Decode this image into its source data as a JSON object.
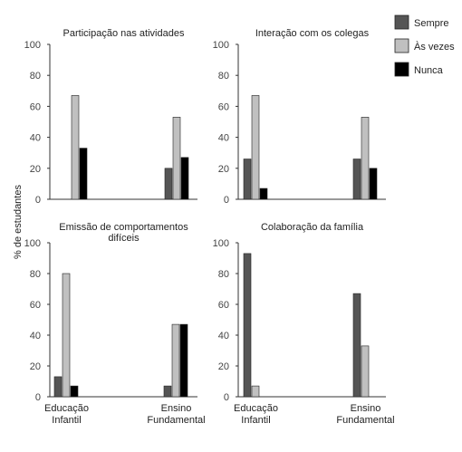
{
  "y_axis_label": "% de estudantes",
  "legend": [
    {
      "name": "Sempre",
      "color": "#555555"
    },
    {
      "name": "Às vezes",
      "color": "#c0c0c0"
    },
    {
      "name": "Nunca",
      "color": "#000000"
    }
  ],
  "chart_data": [
    {
      "type": "bar",
      "title": "Participação nas atividades",
      "categories": [
        "Educação Infantil",
        "Ensino Fundamental"
      ],
      "ylim": [
        0,
        100
      ],
      "yticks": [
        0,
        20,
        40,
        60,
        80,
        100
      ],
      "series": [
        {
          "name": "Sempre",
          "values": [
            0,
            20
          ]
        },
        {
          "name": "Às vezes",
          "values": [
            67,
            53
          ]
        },
        {
          "name": "Nunca",
          "values": [
            33,
            27
          ]
        }
      ]
    },
    {
      "type": "bar",
      "title": "Interação com os colegas",
      "categories": [
        "Educação Infantil",
        "Ensino Fundamental"
      ],
      "ylim": [
        0,
        100
      ],
      "yticks": [
        0,
        20,
        40,
        60,
        80,
        100
      ],
      "series": [
        {
          "name": "Sempre",
          "values": [
            26,
            26
          ]
        },
        {
          "name": "Às vezes",
          "values": [
            67,
            53
          ]
        },
        {
          "name": "Nunca",
          "values": [
            7,
            20
          ]
        }
      ]
    },
    {
      "type": "bar",
      "title": "Emissão de comportamentos difíceis",
      "categories": [
        "Educação Infantil",
        "Ensino Fundamental"
      ],
      "ylim": [
        0,
        100
      ],
      "yticks": [
        0,
        20,
        40,
        60,
        80,
        100
      ],
      "series": [
        {
          "name": "Sempre",
          "values": [
            13,
            7
          ]
        },
        {
          "name": "Às vezes",
          "values": [
            80,
            47
          ]
        },
        {
          "name": "Nunca",
          "values": [
            7,
            47
          ]
        }
      ]
    },
    {
      "type": "bar",
      "title": "Colaboração da família",
      "categories": [
        "Educação Infantil",
        "Ensino Fundamental"
      ],
      "ylim": [
        0,
        100
      ],
      "yticks": [
        0,
        20,
        40,
        60,
        80,
        100
      ],
      "series": [
        {
          "name": "Sempre",
          "values": [
            93,
            67
          ]
        },
        {
          "name": "Às vezes",
          "values": [
            7,
            33
          ]
        },
        {
          "name": "Nunca",
          "values": [
            0,
            0
          ]
        }
      ]
    }
  ]
}
